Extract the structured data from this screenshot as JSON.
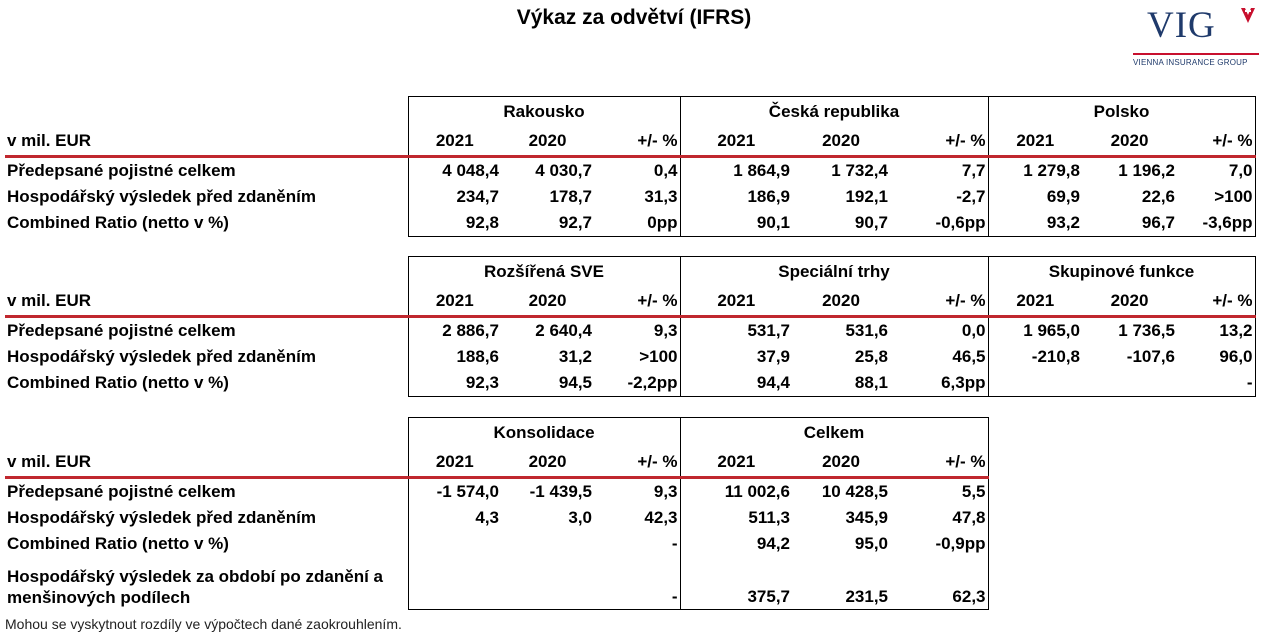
{
  "title": "Výkaz za odvětví (IFRS)",
  "logo": {
    "text": "VIG",
    "subtitle": "VIENNA INSURANCE GROUP",
    "accent": "#c8102e",
    "brand": "#1f3a6b"
  },
  "unit_label": "v mil. EUR",
  "col_labels": {
    "y1": "2021",
    "y2": "2020",
    "chg": "+/- %"
  },
  "blocks": [
    {
      "groups": [
        "Rakousko",
        "Česká republika",
        "Polsko"
      ],
      "rows": [
        {
          "label": "Předepsané pojistné celkem",
          "values": [
            "4 048,4",
            "4 030,7",
            "0,4",
            "1 864,9",
            "1 732,4",
            "7,7",
            "1 279,8",
            "1 196,2",
            "7,0"
          ]
        },
        {
          "label": "Hospodářský výsledek před zdaněním",
          "values": [
            "234,7",
            "178,7",
            "31,3",
            "186,9",
            "192,1",
            "-2,7",
            "69,9",
            "22,6",
            ">100"
          ]
        },
        {
          "label": "Combined Ratio (netto v %)",
          "values": [
            "92,8",
            "92,7",
            "0pp",
            "90,1",
            "90,7",
            "-0,6pp",
            "93,2",
            "96,7",
            "-3,6pp"
          ]
        }
      ]
    },
    {
      "groups": [
        "Rozšířená SVE",
        "Speciální trhy",
        "Skupinové funkce"
      ],
      "rows": [
        {
          "label": "Předepsané pojistné celkem",
          "values": [
            "2 886,7",
            "2 640,4",
            "9,3",
            "531,7",
            "531,6",
            "0,0",
            "1 965,0",
            "1 736,5",
            "13,2"
          ]
        },
        {
          "label": "Hospodářský výsledek před zdaněním",
          "values": [
            "188,6",
            "31,2",
            ">100",
            "37,9",
            "25,8",
            "46,5",
            "-210,8",
            "-107,6",
            "96,0"
          ]
        },
        {
          "label": "Combined Ratio (netto v %)",
          "values": [
            "92,3",
            "94,5",
            "-2,2pp",
            "94,4",
            "88,1",
            "6,3pp",
            "",
            "",
            "-"
          ]
        }
      ]
    },
    {
      "groups": [
        "Konsolidace",
        "Celkem"
      ],
      "rows": [
        {
          "label": "Předepsané pojistné celkem",
          "values": [
            "-1 574,0",
            "-1 439,5",
            "9,3",
            "11 002,6",
            "10 428,5",
            "5,5"
          ]
        },
        {
          "label": "Hospodářský výsledek před zdaněním",
          "values": [
            "4,3",
            "3,0",
            "42,3",
            "511,3",
            "345,9",
            "47,8"
          ]
        },
        {
          "label": "Combined Ratio (netto v %)",
          "values": [
            "",
            "",
            "-",
            "94,2",
            "95,0",
            "-0,9pp"
          ]
        },
        {
          "label": "Hospodářský výsledek za období po zdanění a menšinových podílech",
          "values": [
            "",
            "",
            "-",
            "375,7",
            "231,5",
            "62,3"
          ]
        }
      ]
    }
  ],
  "footnote": "Mohou se vyskytnout rozdíly ve výpočtech dané zaokrouhlením."
}
